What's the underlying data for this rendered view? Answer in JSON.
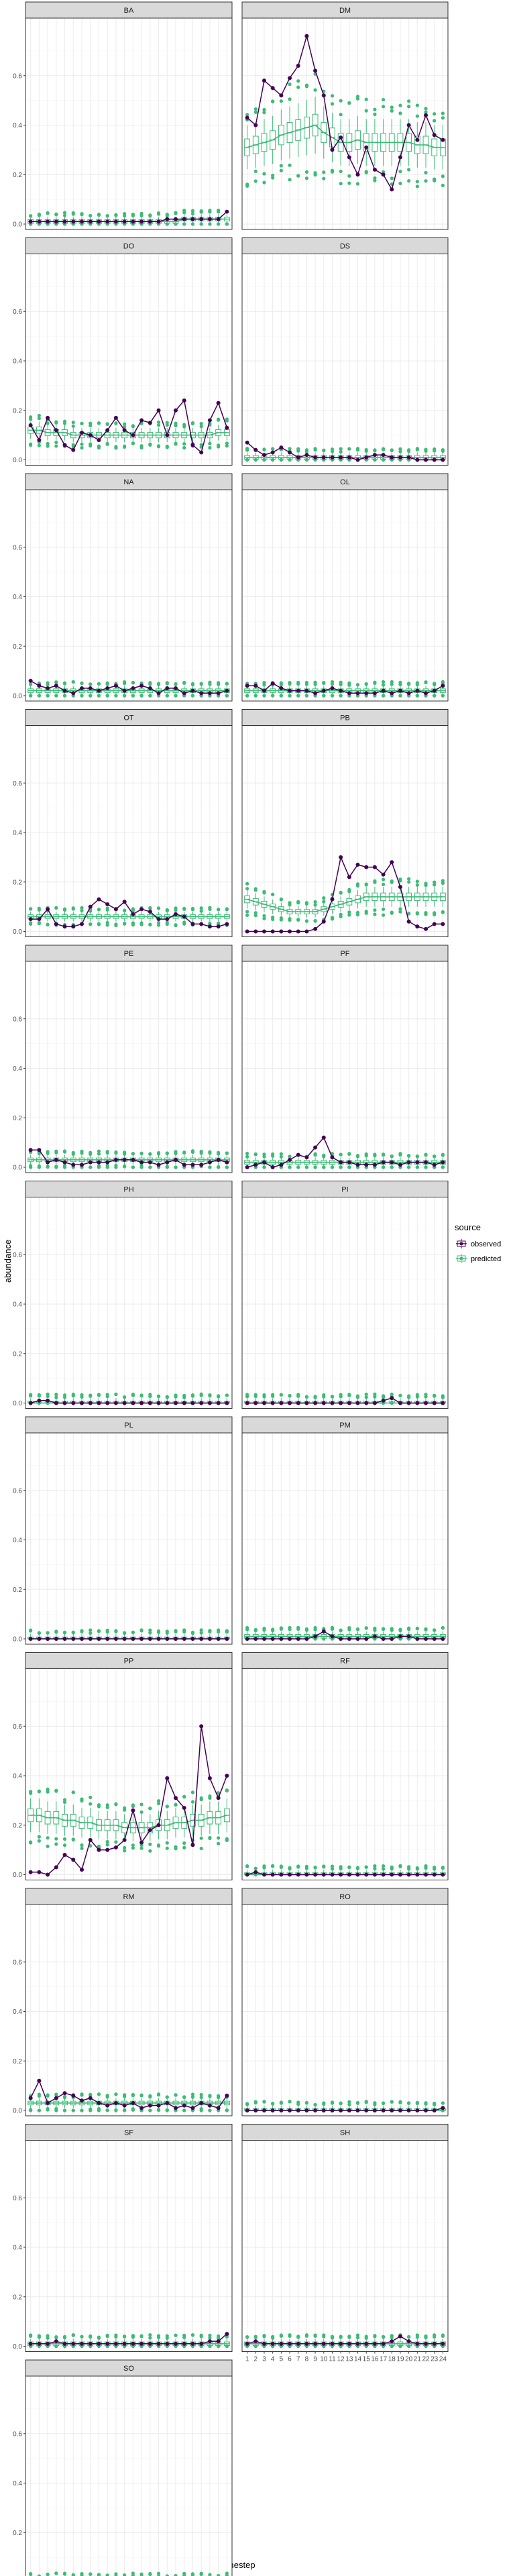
{
  "chart_data": {
    "type": "line",
    "xlabel": "timestep",
    "ylabel": "abundance",
    "ylim": [
      0,
      0.8
    ],
    "y_ticks": [
      "0.0",
      "0.2",
      "0.4",
      "0.6"
    ],
    "x": [
      1,
      2,
      3,
      4,
      5,
      6,
      7,
      8,
      9,
      10,
      11,
      12,
      13,
      14,
      15,
      16,
      17,
      18,
      19,
      20,
      21,
      22,
      23,
      24
    ],
    "x_tick_labels": [
      "1",
      "2",
      "3",
      "4",
      "5",
      "6",
      "7",
      "8",
      "9",
      "10",
      "11",
      "12",
      "13",
      "14",
      "15",
      "16",
      "17",
      "18",
      "19",
      "20",
      "21",
      "22",
      "23",
      "24"
    ],
    "grid": true,
    "legend": {
      "title": "source",
      "position": "right",
      "entries": [
        {
          "label": "observed",
          "color": "#440154"
        },
        {
          "label": "predicted",
          "color": "#3cbb75"
        }
      ]
    },
    "facets": [
      {
        "name": "BA",
        "observed": [
          0.01,
          0.01,
          0.01,
          0.01,
          0.01,
          0.01,
          0.01,
          0.01,
          0.01,
          0.01,
          0.01,
          0.01,
          0.01,
          0.01,
          0.01,
          0.01,
          0.02,
          0.02,
          0.02,
          0.02,
          0.02,
          0.02,
          0.02,
          0.05
        ],
        "predicted_median": [
          0.01,
          0.01,
          0.01,
          0.01,
          0.01,
          0.01,
          0.01,
          0.01,
          0.01,
          0.01,
          0.01,
          0.01,
          0.01,
          0.01,
          0.01,
          0.01,
          0.01,
          0.01,
          0.02,
          0.02,
          0.02,
          0.02,
          0.02,
          0.02
        ]
      },
      {
        "name": "DM",
        "observed": [
          0.43,
          0.4,
          0.58,
          0.55,
          0.52,
          0.59,
          0.64,
          0.76,
          0.62,
          0.52,
          0.3,
          0.35,
          0.27,
          0.2,
          0.31,
          0.22,
          0.2,
          0.14,
          0.27,
          0.4,
          0.34,
          0.44,
          0.36,
          0.34
        ],
        "predicted_median": [
          0.31,
          0.32,
          0.33,
          0.34,
          0.36,
          0.37,
          0.38,
          0.39,
          0.4,
          0.37,
          0.35,
          0.33,
          0.33,
          0.34,
          0.33,
          0.33,
          0.33,
          0.33,
          0.33,
          0.33,
          0.32,
          0.32,
          0.31,
          0.31
        ]
      },
      {
        "name": "DO",
        "observed": [
          0.14,
          0.08,
          0.17,
          0.12,
          0.06,
          0.04,
          0.11,
          0.1,
          0.08,
          0.12,
          0.17,
          0.12,
          0.1,
          0.16,
          0.15,
          0.2,
          0.1,
          0.2,
          0.24,
          0.06,
          0.03,
          0.16,
          0.23,
          0.13
        ],
        "predicted_median": [
          0.12,
          0.12,
          0.11,
          0.11,
          0.11,
          0.1,
          0.1,
          0.1,
          0.1,
          0.1,
          0.1,
          0.1,
          0.1,
          0.1,
          0.1,
          0.1,
          0.1,
          0.1,
          0.1,
          0.1,
          0.1,
          0.1,
          0.11,
          0.11
        ]
      },
      {
        "name": "DS",
        "observed": [
          0.07,
          0.04,
          0.02,
          0.03,
          0.05,
          0.03,
          0.01,
          0.02,
          0.01,
          0.01,
          0.01,
          0.01,
          0.01,
          0.0,
          0.01,
          0.02,
          0.02,
          0.01,
          0.01,
          0.01,
          0.0,
          0.0,
          0.0,
          0.0
        ],
        "predicted_median": [
          0.01,
          0.01,
          0.01,
          0.01,
          0.01,
          0.01,
          0.01,
          0.01,
          0.01,
          0.01,
          0.01,
          0.01,
          0.01,
          0.01,
          0.01,
          0.01,
          0.01,
          0.01,
          0.01,
          0.01,
          0.01,
          0.01,
          0.01,
          0.01
        ]
      },
      {
        "name": "NA",
        "observed": [
          0.06,
          0.04,
          0.03,
          0.04,
          0.02,
          0.01,
          0.03,
          0.03,
          0.02,
          0.03,
          0.04,
          0.02,
          0.03,
          0.04,
          0.03,
          0.01,
          0.03,
          0.03,
          0.01,
          0.02,
          0.01,
          0.01,
          0.01,
          0.02
        ],
        "predicted_median": [
          0.02,
          0.02,
          0.02,
          0.02,
          0.02,
          0.02,
          0.02,
          0.02,
          0.02,
          0.02,
          0.02,
          0.02,
          0.02,
          0.02,
          0.02,
          0.02,
          0.02,
          0.02,
          0.02,
          0.02,
          0.02,
          0.02,
          0.02,
          0.02
        ]
      },
      {
        "name": "OL",
        "observed": [
          0.04,
          0.04,
          0.02,
          0.05,
          0.03,
          0.02,
          0.02,
          0.02,
          0.01,
          0.02,
          0.03,
          0.02,
          0.01,
          0.01,
          0.01,
          0.01,
          0.02,
          0.01,
          0.02,
          0.01,
          0.02,
          0.01,
          0.02,
          0.04
        ],
        "predicted_median": [
          0.02,
          0.02,
          0.02,
          0.02,
          0.02,
          0.02,
          0.02,
          0.02,
          0.02,
          0.02,
          0.02,
          0.02,
          0.02,
          0.02,
          0.02,
          0.02,
          0.02,
          0.02,
          0.02,
          0.02,
          0.02,
          0.02,
          0.02,
          0.02
        ]
      },
      {
        "name": "OT",
        "observed": [
          0.05,
          0.05,
          0.09,
          0.03,
          0.02,
          0.02,
          0.03,
          0.1,
          0.13,
          0.11,
          0.09,
          0.12,
          0.07,
          0.09,
          0.08,
          0.05,
          0.05,
          0.07,
          0.06,
          0.03,
          0.03,
          0.02,
          0.02,
          0.03
        ],
        "predicted_median": [
          0.06,
          0.06,
          0.06,
          0.06,
          0.06,
          0.06,
          0.06,
          0.06,
          0.06,
          0.06,
          0.06,
          0.06,
          0.06,
          0.06,
          0.06,
          0.06,
          0.06,
          0.06,
          0.06,
          0.06,
          0.06,
          0.06,
          0.06,
          0.06
        ]
      },
      {
        "name": "PB",
        "observed": [
          0.0,
          0.0,
          0.0,
          0.0,
          0.0,
          0.0,
          0.0,
          0.0,
          0.01,
          0.04,
          0.13,
          0.3,
          0.22,
          0.27,
          0.26,
          0.26,
          0.23,
          0.28,
          0.18,
          0.04,
          0.02,
          0.01,
          0.03,
          0.03
        ],
        "predicted_median": [
          0.13,
          0.12,
          0.11,
          0.1,
          0.09,
          0.08,
          0.08,
          0.08,
          0.08,
          0.09,
          0.1,
          0.11,
          0.12,
          0.13,
          0.14,
          0.14,
          0.14,
          0.14,
          0.14,
          0.14,
          0.14,
          0.14,
          0.14,
          0.14
        ]
      },
      {
        "name": "PE",
        "observed": [
          0.07,
          0.07,
          0.02,
          0.03,
          0.02,
          0.01,
          0.01,
          0.02,
          0.02,
          0.02,
          0.03,
          0.03,
          0.03,
          0.02,
          0.02,
          0.01,
          0.02,
          0.03,
          0.01,
          0.01,
          0.01,
          0.02,
          0.03,
          0.02
        ],
        "predicted_median": [
          0.03,
          0.03,
          0.03,
          0.03,
          0.03,
          0.03,
          0.03,
          0.03,
          0.03,
          0.03,
          0.03,
          0.03,
          0.03,
          0.03,
          0.03,
          0.03,
          0.03,
          0.03,
          0.03,
          0.03,
          0.03,
          0.03,
          0.03,
          0.03
        ]
      },
      {
        "name": "PF",
        "observed": [
          0.0,
          0.01,
          0.02,
          0.0,
          0.01,
          0.03,
          0.05,
          0.04,
          0.08,
          0.12,
          0.04,
          0.02,
          0.02,
          0.01,
          0.01,
          0.01,
          0.02,
          0.02,
          0.01,
          0.02,
          0.02,
          0.02,
          0.01,
          0.02
        ],
        "predicted_median": [
          0.02,
          0.02,
          0.02,
          0.02,
          0.02,
          0.02,
          0.02,
          0.02,
          0.02,
          0.02,
          0.02,
          0.02,
          0.02,
          0.02,
          0.02,
          0.02,
          0.02,
          0.02,
          0.02,
          0.02,
          0.02,
          0.02,
          0.02,
          0.02
        ]
      },
      {
        "name": "PH",
        "observed": [
          0.0,
          0.01,
          0.01,
          0.0,
          0.0,
          0.0,
          0.0,
          0.0,
          0.0,
          0.0,
          0.0,
          0.0,
          0.0,
          0.0,
          0.0,
          0.0,
          0.0,
          0.0,
          0.0,
          0.0,
          0.0,
          0.0,
          0.0,
          0.0
        ],
        "predicted_median": [
          0.0,
          0.0,
          0.0,
          0.0,
          0.0,
          0.0,
          0.0,
          0.0,
          0.0,
          0.0,
          0.0,
          0.0,
          0.0,
          0.0,
          0.0,
          0.0,
          0.0,
          0.0,
          0.0,
          0.0,
          0.0,
          0.0,
          0.0,
          0.0
        ]
      },
      {
        "name": "PI",
        "observed": [
          0.0,
          0.0,
          0.0,
          0.0,
          0.0,
          0.0,
          0.0,
          0.0,
          0.0,
          0.0,
          0.0,
          0.0,
          0.0,
          0.0,
          0.0,
          0.0,
          0.01,
          0.02,
          0.0,
          0.0,
          0.0,
          0.0,
          0.0,
          0.0
        ],
        "predicted_median": [
          0.0,
          0.0,
          0.0,
          0.0,
          0.0,
          0.0,
          0.0,
          0.0,
          0.0,
          0.0,
          0.0,
          0.0,
          0.0,
          0.0,
          0.0,
          0.0,
          0.0,
          0.0,
          0.0,
          0.0,
          0.0,
          0.0,
          0.0,
          0.0
        ]
      },
      {
        "name": "PL",
        "observed": [
          0.0,
          0.0,
          0.0,
          0.0,
          0.0,
          0.0,
          0.0,
          0.0,
          0.0,
          0.0,
          0.0,
          0.0,
          0.0,
          0.0,
          0.0,
          0.0,
          0.0,
          0.0,
          0.0,
          0.0,
          0.0,
          0.0,
          0.0,
          0.0
        ],
        "predicted_median": [
          0.0,
          0.0,
          0.0,
          0.0,
          0.0,
          0.0,
          0.0,
          0.0,
          0.0,
          0.0,
          0.0,
          0.0,
          0.0,
          0.0,
          0.0,
          0.0,
          0.0,
          0.0,
          0.0,
          0.0,
          0.0,
          0.0,
          0.0,
          0.0
        ]
      },
      {
        "name": "PM",
        "observed": [
          0.0,
          0.0,
          0.0,
          0.0,
          0.0,
          0.0,
          0.0,
          0.0,
          0.01,
          0.03,
          0.01,
          0.0,
          0.0,
          0.0,
          0.0,
          0.01,
          0.0,
          0.0,
          0.01,
          0.01,
          0.0,
          0.0,
          0.0,
          0.0
        ],
        "predicted_median": [
          0.01,
          0.01,
          0.01,
          0.01,
          0.01,
          0.01,
          0.01,
          0.01,
          0.01,
          0.01,
          0.01,
          0.01,
          0.01,
          0.01,
          0.01,
          0.01,
          0.01,
          0.01,
          0.01,
          0.01,
          0.01,
          0.01,
          0.01,
          0.01
        ]
      },
      {
        "name": "PP",
        "observed": [
          0.01,
          0.01,
          0.0,
          0.03,
          0.08,
          0.06,
          0.02,
          0.14,
          0.1,
          0.1,
          0.11,
          0.14,
          0.26,
          0.13,
          0.18,
          0.2,
          0.39,
          0.31,
          0.27,
          0.12,
          0.6,
          0.39,
          0.31,
          0.4
        ],
        "predicted_median": [
          0.24,
          0.24,
          0.23,
          0.23,
          0.22,
          0.22,
          0.21,
          0.21,
          0.2,
          0.2,
          0.2,
          0.19,
          0.19,
          0.19,
          0.19,
          0.2,
          0.2,
          0.21,
          0.21,
          0.22,
          0.22,
          0.23,
          0.23,
          0.24
        ]
      },
      {
        "name": "RF",
        "observed": [
          0.0,
          0.01,
          0.0,
          0.0,
          0.0,
          0.0,
          0.0,
          0.0,
          0.0,
          0.0,
          0.0,
          0.0,
          0.0,
          0.0,
          0.0,
          0.0,
          0.0,
          0.0,
          0.0,
          0.0,
          0.0,
          0.0,
          0.0,
          0.0
        ],
        "predicted_median": [
          0.0,
          0.0,
          0.0,
          0.0,
          0.0,
          0.0,
          0.0,
          0.0,
          0.0,
          0.0,
          0.0,
          0.0,
          0.0,
          0.0,
          0.0,
          0.0,
          0.0,
          0.0,
          0.0,
          0.0,
          0.0,
          0.0,
          0.0,
          0.0
        ]
      },
      {
        "name": "RM",
        "observed": [
          0.05,
          0.12,
          0.03,
          0.05,
          0.07,
          0.06,
          0.04,
          0.05,
          0.03,
          0.02,
          0.03,
          0.02,
          0.03,
          0.01,
          0.02,
          0.02,
          0.03,
          0.01,
          0.02,
          0.01,
          0.03,
          0.02,
          0.01,
          0.06
        ],
        "predicted_median": [
          0.03,
          0.03,
          0.03,
          0.03,
          0.03,
          0.03,
          0.03,
          0.03,
          0.03,
          0.03,
          0.03,
          0.03,
          0.03,
          0.03,
          0.03,
          0.03,
          0.03,
          0.03,
          0.03,
          0.03,
          0.03,
          0.03,
          0.03,
          0.03
        ]
      },
      {
        "name": "RO",
        "observed": [
          0.0,
          0.0,
          0.0,
          0.0,
          0.0,
          0.0,
          0.0,
          0.0,
          0.0,
          0.0,
          0.0,
          0.0,
          0.0,
          0.0,
          0.0,
          0.0,
          0.0,
          0.0,
          0.0,
          0.0,
          0.0,
          0.0,
          0.0,
          0.01
        ],
        "predicted_median": [
          0.0,
          0.0,
          0.0,
          0.0,
          0.0,
          0.0,
          0.0,
          0.0,
          0.0,
          0.0,
          0.0,
          0.0,
          0.0,
          0.0,
          0.0,
          0.0,
          0.0,
          0.0,
          0.0,
          0.0,
          0.0,
          0.0,
          0.0,
          0.0
        ]
      },
      {
        "name": "SF",
        "observed": [
          0.01,
          0.01,
          0.01,
          0.02,
          0.01,
          0.01,
          0.01,
          0.01,
          0.01,
          0.01,
          0.01,
          0.01,
          0.01,
          0.01,
          0.01,
          0.01,
          0.01,
          0.01,
          0.01,
          0.01,
          0.01,
          0.02,
          0.02,
          0.05
        ],
        "predicted_median": [
          0.01,
          0.01,
          0.01,
          0.01,
          0.01,
          0.01,
          0.01,
          0.01,
          0.01,
          0.01,
          0.01,
          0.01,
          0.01,
          0.01,
          0.01,
          0.01,
          0.01,
          0.01,
          0.01,
          0.01,
          0.01,
          0.01,
          0.01,
          0.01
        ]
      },
      {
        "name": "SH",
        "observed": [
          0.01,
          0.02,
          0.01,
          0.01,
          0.01,
          0.01,
          0.01,
          0.01,
          0.01,
          0.01,
          0.01,
          0.01,
          0.01,
          0.01,
          0.01,
          0.01,
          0.01,
          0.02,
          0.04,
          0.02,
          0.01,
          0.01,
          0.01,
          0.01
        ],
        "predicted_median": [
          0.01,
          0.01,
          0.01,
          0.01,
          0.01,
          0.01,
          0.01,
          0.01,
          0.01,
          0.01,
          0.01,
          0.01,
          0.01,
          0.01,
          0.01,
          0.01,
          0.01,
          0.01,
          0.01,
          0.01,
          0.01,
          0.01,
          0.01,
          0.01
        ]
      },
      {
        "name": "SO",
        "observed": [
          0.0,
          0.0,
          0.0,
          0.0,
          0.0,
          0.0,
          0.0,
          0.0,
          0.0,
          0.0,
          0.0,
          0.0,
          0.0,
          0.0,
          0.0,
          0.0,
          0.0,
          0.0,
          0.0,
          0.0,
          0.0,
          0.0,
          0.0,
          0.0
        ],
        "predicted_median": [
          0.0,
          0.0,
          0.0,
          0.0,
          0.0,
          0.0,
          0.0,
          0.0,
          0.0,
          0.0,
          0.0,
          0.0,
          0.0,
          0.0,
          0.0,
          0.0,
          0.0,
          0.0,
          0.0,
          0.0,
          0.0,
          0.0,
          0.0,
          0.0
        ]
      }
    ]
  }
}
